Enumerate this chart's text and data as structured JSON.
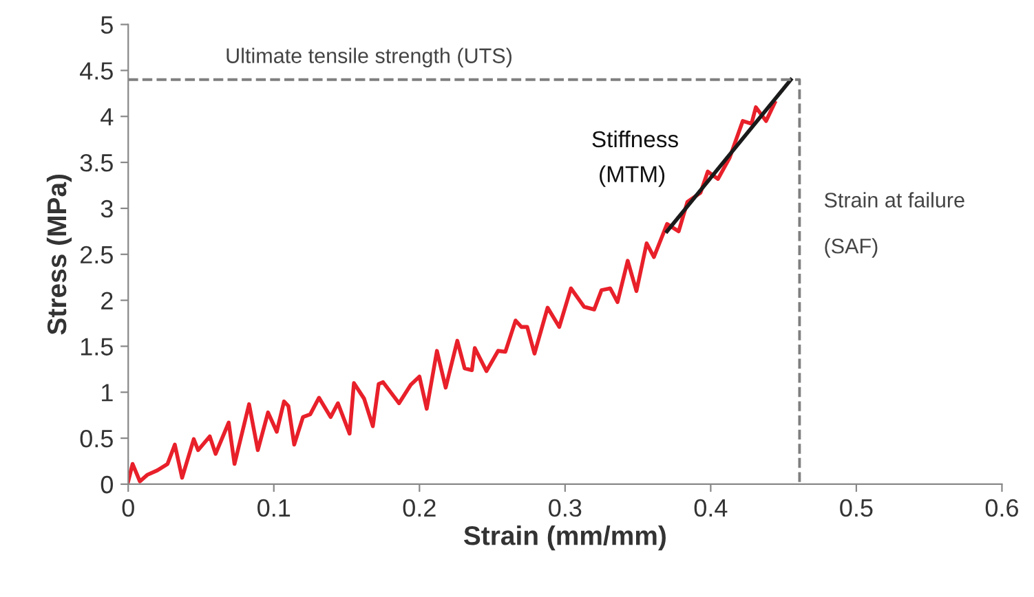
{
  "chart_data": {
    "type": "line",
    "xlabel": "Strain (mm/mm)",
    "ylabel": "Stress (MPa)",
    "xlim": [
      0,
      0.6
    ],
    "xticks": [
      0,
      0.1,
      0.2,
      0.3,
      0.4,
      0.5,
      0.6
    ],
    "ylim": [
      0,
      5
    ],
    "yticks": [
      0,
      0.5,
      1,
      1.5,
      2,
      2.5,
      3,
      3.5,
      4,
      4.5,
      5
    ],
    "grid": false,
    "legend": false,
    "marker": "none",
    "series": [
      {
        "color": "#e8202a",
        "line_style": "solid",
        "x": [
          0,
          0.003,
          0.008,
          0.013,
          0.02,
          0.027,
          0.032,
          0.037,
          0.045,
          0.048,
          0.056,
          0.06,
          0.069,
          0.073,
          0.083,
          0.089,
          0.096,
          0.102,
          0.107,
          0.11,
          0.114,
          0.12,
          0.125,
          0.131,
          0.139,
          0.144,
          0.152,
          0.155,
          0.162,
          0.168,
          0.172,
          0.175,
          0.186,
          0.194,
          0.2,
          0.205,
          0.212,
          0.218,
          0.226,
          0.231,
          0.236,
          0.238,
          0.246,
          0.254,
          0.259,
          0.266,
          0.27,
          0.274,
          0.279,
          0.288,
          0.296,
          0.304,
          0.313,
          0.32,
          0.325,
          0.331,
          0.336,
          0.343,
          0.349,
          0.356,
          0.361,
          0.37,
          0.378,
          0.384,
          0.393,
          0.398,
          0.405,
          0.413,
          0.422,
          0.428,
          0.431,
          0.438,
          0.444
        ],
        "values": [
          0.03,
          0.22,
          0.03,
          0.1,
          0.15,
          0.22,
          0.43,
          0.07,
          0.49,
          0.37,
          0.52,
          0.33,
          0.67,
          0.22,
          0.87,
          0.37,
          0.78,
          0.57,
          0.9,
          0.85,
          0.43,
          0.73,
          0.76,
          0.94,
          0.73,
          0.88,
          0.55,
          1.1,
          0.93,
          0.63,
          1.09,
          1.11,
          0.88,
          1.08,
          1.17,
          0.82,
          1.45,
          1.05,
          1.56,
          1.26,
          1.24,
          1.48,
          1.23,
          1.45,
          1.44,
          1.78,
          1.71,
          1.71,
          1.42,
          1.92,
          1.71,
          2.13,
          1.93,
          1.9,
          2.11,
          2.13,
          1.98,
          2.43,
          2.1,
          2.62,
          2.47,
          2.83,
          2.75,
          3.07,
          3.17,
          3.4,
          3.32,
          3.55,
          3.95,
          3.92,
          4.1,
          3.95,
          4.15
        ]
      },
      {
        "color": "#1a1a1a",
        "line_style": "solid",
        "x": [
          0.37,
          0.455
        ],
        "values": [
          2.75,
          4.4
        ]
      },
      {
        "color": "#7f7f7f",
        "line_style": "dashed",
        "x": [
          0,
          0.461,
          0.461
        ],
        "values": [
          4.4,
          4.4,
          0
        ]
      }
    ],
    "annotations": [
      "Ultimate tensile strength (UTS)",
      "Stiffness",
      "(MTM)",
      "Strain at failure",
      "(SAF)"
    ]
  }
}
